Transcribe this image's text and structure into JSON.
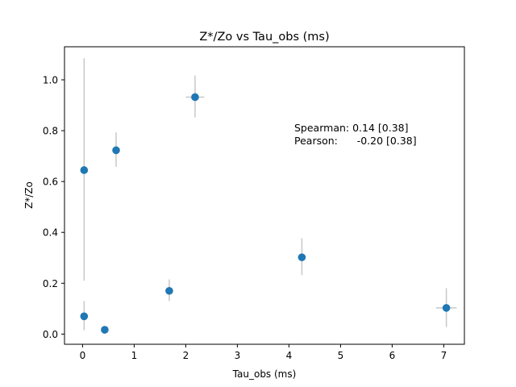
{
  "chart_data": {
    "type": "scatter",
    "title": "Z*/Zo vs Tau_obs (ms)",
    "xlabel": "Tau_obs (ms)",
    "ylabel": "Z*/Zo",
    "xlim": [
      -0.35,
      7.4
    ],
    "ylim": [
      -0.04,
      1.13
    ],
    "xticks": [
      0,
      1,
      2,
      3,
      4,
      5,
      6,
      7
    ],
    "yticks": [
      0.0,
      0.2,
      0.4,
      0.6,
      0.8,
      1.0
    ],
    "xtick_labels": [
      "0",
      "1",
      "2",
      "3",
      "4",
      "5",
      "6",
      "7"
    ],
    "ytick_labels": [
      "0.0",
      "0.2",
      "0.4",
      "0.6",
      "0.8",
      "1.0"
    ],
    "grid": false,
    "point_color": "#1f77b4",
    "errorbar_color": "#c8c8c8",
    "points": [
      {
        "x": 0.03,
        "y": 0.645,
        "xerr": 0.0,
        "yerr_low": 0.435,
        "yerr_high": 0.44
      },
      {
        "x": 0.03,
        "y": 0.07,
        "xerr": 0.0,
        "yerr_low": 0.055,
        "yerr_high": 0.06
      },
      {
        "x": 0.43,
        "y": 0.017,
        "xerr": 0.0,
        "yerr_low": 0.01,
        "yerr_high": 0.01
      },
      {
        "x": 0.65,
        "y": 0.723,
        "xerr": 0.0,
        "yerr_low": 0.065,
        "yerr_high": 0.07
      },
      {
        "x": 1.68,
        "y": 0.17,
        "xerr": 0.0,
        "yerr_low": 0.04,
        "yerr_high": 0.045
      },
      {
        "x": 2.18,
        "y": 0.932,
        "xerr": 0.18,
        "yerr_low": 0.08,
        "yerr_high": 0.085
      },
      {
        "x": 4.25,
        "y": 0.302,
        "xerr": 0.0,
        "yerr_low": 0.07,
        "yerr_high": 0.075
      },
      {
        "x": 7.05,
        "y": 0.103,
        "xerr": 0.2,
        "yerr_low": 0.075,
        "yerr_high": 0.078
      }
    ],
    "annotations": [
      "Spearman: 0.14 [0.38]",
      "Pearson:      -0.20 [0.38]"
    ]
  }
}
